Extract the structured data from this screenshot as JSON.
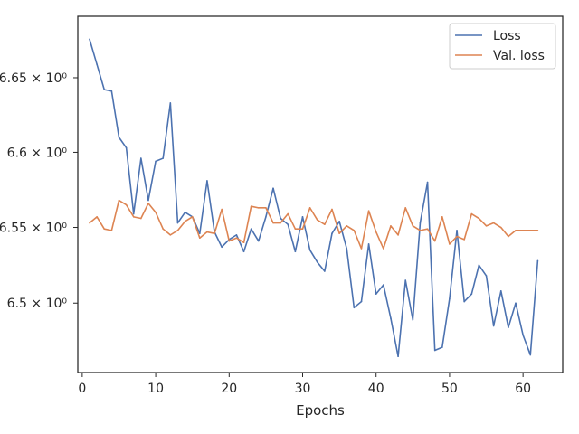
{
  "chart_data": {
    "type": "line",
    "title": "",
    "xlabel": "Epochs",
    "ylabel": "",
    "xlim": [
      -0.6,
      65.4
    ],
    "ylim": [
      6.4545,
      6.6915
    ],
    "yscale": "log",
    "grid": false,
    "legend_position": "top-right",
    "x_ticks": [
      0,
      10,
      20,
      30,
      40,
      50,
      60
    ],
    "x_tick_labels": [
      "0",
      "10",
      "20",
      "30",
      "40",
      "50",
      "60"
    ],
    "y_ticks": [
      6.5,
      6.55,
      6.6,
      6.65
    ],
    "y_tick_labels": [
      "6.5 × 10⁰",
      "6.55 × 10⁰",
      "6.6 × 10⁰",
      "6.65 × 10⁰"
    ],
    "x": [
      1,
      2,
      3,
      4,
      5,
      6,
      7,
      8,
      9,
      10,
      11,
      12,
      13,
      14,
      15,
      16,
      17,
      18,
      19,
      20,
      21,
      22,
      23,
      24,
      25,
      26,
      27,
      28,
      29,
      30,
      31,
      32,
      33,
      34,
      35,
      36,
      37,
      38,
      39,
      40,
      41,
      42,
      43,
      44,
      45,
      46,
      47,
      48,
      49,
      50,
      51,
      52,
      53,
      54,
      55,
      56,
      57,
      58,
      59,
      60,
      61,
      62
    ],
    "series": [
      {
        "name": "Loss",
        "color": "#4c72b0",
        "values": [
          6.676,
          6.659,
          6.642,
          6.641,
          6.61,
          6.603,
          6.559,
          6.596,
          6.568,
          6.594,
          6.596,
          6.633,
          6.553,
          6.56,
          6.557,
          6.546,
          6.581,
          6.547,
          6.537,
          6.542,
          6.545,
          6.534,
          6.549,
          6.541,
          6.557,
          6.576,
          6.556,
          6.552,
          6.534,
          6.557,
          6.535,
          6.527,
          6.521,
          6.546,
          6.554,
          6.536,
          6.497,
          6.501,
          6.539,
          6.506,
          6.512,
          6.49,
          6.465,
          6.515,
          6.489,
          6.553,
          6.58,
          6.469,
          6.471,
          6.503,
          6.548,
          6.501,
          6.506,
          6.525,
          6.518,
          6.485,
          6.508,
          6.484,
          6.5,
          6.479,
          6.466,
          6.528
        ]
      },
      {
        "name": "Val. loss",
        "color": "#dd8452",
        "values": [
          6.553,
          6.557,
          6.549,
          6.548,
          6.568,
          6.565,
          6.557,
          6.556,
          6.566,
          6.56,
          6.549,
          6.545,
          6.548,
          6.554,
          6.557,
          6.543,
          6.547,
          6.546,
          6.562,
          6.541,
          6.543,
          6.54,
          6.564,
          6.563,
          6.563,
          6.553,
          6.553,
          6.559,
          6.549,
          6.549,
          6.563,
          6.555,
          6.552,
          6.562,
          6.546,
          6.551,
          6.548,
          6.536,
          6.561,
          6.547,
          6.536,
          6.551,
          6.545,
          6.563,
          6.551,
          6.548,
          6.549,
          6.541,
          6.557,
          6.539,
          6.544,
          6.542,
          6.559,
          6.556,
          6.551,
          6.553,
          6.55,
          6.544,
          6.548,
          6.548,
          6.548,
          6.548
        ]
      }
    ]
  }
}
